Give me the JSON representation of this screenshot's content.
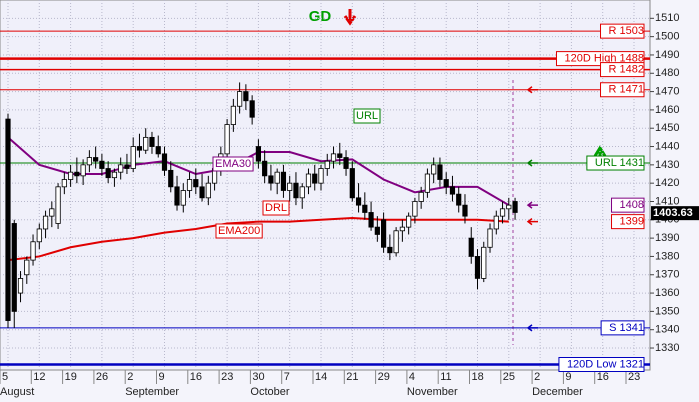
{
  "chart_data": {
    "type": "candlestick",
    "title": "GD",
    "ylim": [
      1318,
      1520
    ],
    "yticks": [
      1330,
      1340,
      1350,
      1360,
      1370,
      1380,
      1390,
      1400,
      1410,
      1420,
      1430,
      1440,
      1450,
      1460,
      1470,
      1480,
      1490,
      1500,
      1510
    ],
    "grid": true,
    "categories": [
      "5",
      "12",
      "19",
      "26",
      "2",
      "9",
      "16",
      "23",
      "30",
      "7",
      "14",
      "21",
      "29",
      "4",
      "11",
      "18",
      "25",
      "2",
      "9",
      "16",
      "23"
    ],
    "months": [
      "August",
      null,
      null,
      null,
      "September",
      null,
      null,
      null,
      "October",
      null,
      null,
      null,
      null,
      "November",
      null,
      null,
      null,
      "December",
      null,
      null,
      null
    ],
    "ohlc": [
      [
        1455,
        1458,
        1341,
        1345
      ],
      [
        1398,
        1400,
        1341,
        1350
      ],
      [
        1360,
        1372,
        1355,
        1368
      ],
      [
        1370,
        1380,
        1365,
        1378
      ],
      [
        1378,
        1392,
        1375,
        1388
      ],
      [
        1388,
        1398,
        1384,
        1395
      ],
      [
        1395,
        1405,
        1390,
        1402
      ],
      [
        1402,
        1410,
        1396,
        1406
      ],
      [
        1398,
        1420,
        1395,
        1418
      ],
      [
        1418,
        1426,
        1414,
        1422
      ],
      [
        1422,
        1430,
        1418,
        1426
      ],
      [
        1426,
        1434,
        1420,
        1424
      ],
      [
        1424,
        1433,
        1419,
        1430
      ],
      [
        1430,
        1438,
        1426,
        1434
      ],
      [
        1434,
        1440,
        1428,
        1432
      ],
      [
        1432,
        1436,
        1424,
        1428
      ],
      [
        1428,
        1432,
        1420,
        1423
      ],
      [
        1423,
        1428,
        1418,
        1426
      ],
      [
        1426,
        1434,
        1422,
        1430
      ],
      [
        1430,
        1436,
        1425,
        1428
      ],
      [
        1428,
        1445,
        1426,
        1440
      ],
      [
        1440,
        1447,
        1434,
        1438
      ],
      [
        1438,
        1450,
        1436,
        1445
      ],
      [
        1445,
        1448,
        1436,
        1440
      ],
      [
        1440,
        1446,
        1434,
        1436
      ],
      [
        1436,
        1440,
        1424,
        1427
      ],
      [
        1427,
        1432,
        1415,
        1418
      ],
      [
        1418,
        1424,
        1405,
        1408
      ],
      [
        1408,
        1420,
        1404,
        1416
      ],
      [
        1416,
        1426,
        1412,
        1422
      ],
      [
        1422,
        1428,
        1414,
        1418
      ],
      [
        1418,
        1425,
        1410,
        1412
      ],
      [
        1412,
        1424,
        1408,
        1420
      ],
      [
        1420,
        1432,
        1416,
        1428
      ],
      [
        1428,
        1440,
        1424,
        1436
      ],
      [
        1436,
        1455,
        1432,
        1452
      ],
      [
        1452,
        1466,
        1448,
        1462
      ],
      [
        1462,
        1475,
        1458,
        1470
      ],
      [
        1470,
        1474,
        1460,
        1465
      ],
      [
        1465,
        1468,
        1452,
        1456
      ],
      [
        1440,
        1444,
        1428,
        1432
      ],
      [
        1432,
        1438,
        1420,
        1424
      ],
      [
        1424,
        1430,
        1416,
        1420
      ],
      [
        1420,
        1428,
        1414,
        1426
      ],
      [
        1426,
        1430,
        1412,
        1416
      ],
      [
        1416,
        1424,
        1410,
        1420
      ],
      [
        1420,
        1426,
        1408,
        1412
      ],
      [
        1412,
        1420,
        1406,
        1418
      ],
      [
        1418,
        1428,
        1414,
        1425
      ],
      [
        1425,
        1430,
        1416,
        1420
      ],
      [
        1420,
        1430,
        1416,
        1428
      ],
      [
        1428,
        1436,
        1424,
        1432
      ],
      [
        1432,
        1440,
        1428,
        1436
      ],
      [
        1436,
        1442,
        1430,
        1434
      ],
      [
        1434,
        1438,
        1424,
        1428
      ],
      [
        1428,
        1432,
        1410,
        1412
      ],
      [
        1412,
        1420,
        1404,
        1408
      ],
      [
        1408,
        1415,
        1400,
        1404
      ],
      [
        1404,
        1410,
        1394,
        1396
      ],
      [
        1396,
        1402,
        1388,
        1392
      ],
      [
        1400,
        1404,
        1382,
        1385
      ],
      [
        1385,
        1392,
        1378,
        1382
      ],
      [
        1382,
        1396,
        1380,
        1394
      ],
      [
        1394,
        1400,
        1388,
        1396
      ],
      [
        1396,
        1404,
        1392,
        1402
      ],
      [
        1402,
        1412,
        1398,
        1410
      ],
      [
        1410,
        1418,
        1406,
        1415
      ],
      [
        1415,
        1428,
        1412,
        1425
      ],
      [
        1425,
        1434,
        1420,
        1430
      ],
      [
        1430,
        1434,
        1418,
        1422
      ],
      [
        1422,
        1426,
        1414,
        1418
      ],
      [
        1418,
        1424,
        1410,
        1414
      ],
      [
        1414,
        1418,
        1404,
        1408
      ],
      [
        1408,
        1414,
        1398,
        1402
      ],
      [
        1390,
        1396,
        1376,
        1380
      ],
      [
        1380,
        1384,
        1362,
        1368
      ],
      [
        1368,
        1388,
        1366,
        1385
      ],
      [
        1385,
        1398,
        1382,
        1395
      ],
      [
        1395,
        1405,
        1392,
        1402
      ],
      [
        1402,
        1410,
        1398,
        1406
      ],
      [
        1406,
        1412,
        1400,
        1408
      ],
      [
        1410,
        1412,
        1400,
        1404
      ]
    ],
    "series": [
      {
        "name": "EMA30",
        "color": "#800080",
        "values": [
          1445,
          1430,
          1425,
          1425,
          1430,
          1432,
          1425,
          1428,
          1437,
          1437,
          1432,
          1433,
          1422,
          1415,
          1418,
          1418,
          1408,
          null,
          null,
          null,
          null
        ]
      },
      {
        "name": "EMA200",
        "color": "#e00000",
        "values": [
          1378,
          1380,
          1385,
          1388,
          1390,
          1393,
          1395,
          1398,
          1399,
          1399,
          1400,
          1401,
          1400,
          1400,
          1400,
          1400,
          1399,
          null,
          null,
          null,
          null
        ]
      }
    ],
    "levels": [
      {
        "value": 1503,
        "label": "R 1503",
        "color": "#e00000",
        "width": 1,
        "line": true,
        "arrow": false
      },
      {
        "value": 1488,
        "label": "120D High 1488",
        "color": "#e00000",
        "width": 2.5,
        "line": true,
        "arrow": false
      },
      {
        "value": 1482,
        "label": "R 1482",
        "color": "#e00000",
        "width": 1.5,
        "line": true,
        "arrow": false
      },
      {
        "value": 1471,
        "label": "R 1471",
        "color": "#e00000",
        "width": 1,
        "line": true,
        "arrow": true
      },
      {
        "value": 1431,
        "label": "URL 1431",
        "color": "#008000",
        "width": 1,
        "line": true,
        "arrow": true
      },
      {
        "value": 1408,
        "label": "1408",
        "color": "#800080",
        "width": 1,
        "line": false,
        "arrow": true
      },
      {
        "value": 1399,
        "label": "1399",
        "color": "#e00000",
        "width": 1,
        "line": false,
        "arrow": true
      },
      {
        "value": 1341,
        "label": "S 1341",
        "color": "#0000c0",
        "width": 1,
        "line": true,
        "arrow": true
      },
      {
        "value": 1321,
        "label": "120D Low 1321",
        "color": "#0000c0",
        "width": 2.5,
        "line": true,
        "arrow": false
      }
    ],
    "last_price": {
      "value": 1403.63,
      "label": "1403.63"
    },
    "annotations": [
      "EMA30",
      "EMA200",
      "DRL",
      "URL"
    ]
  }
}
